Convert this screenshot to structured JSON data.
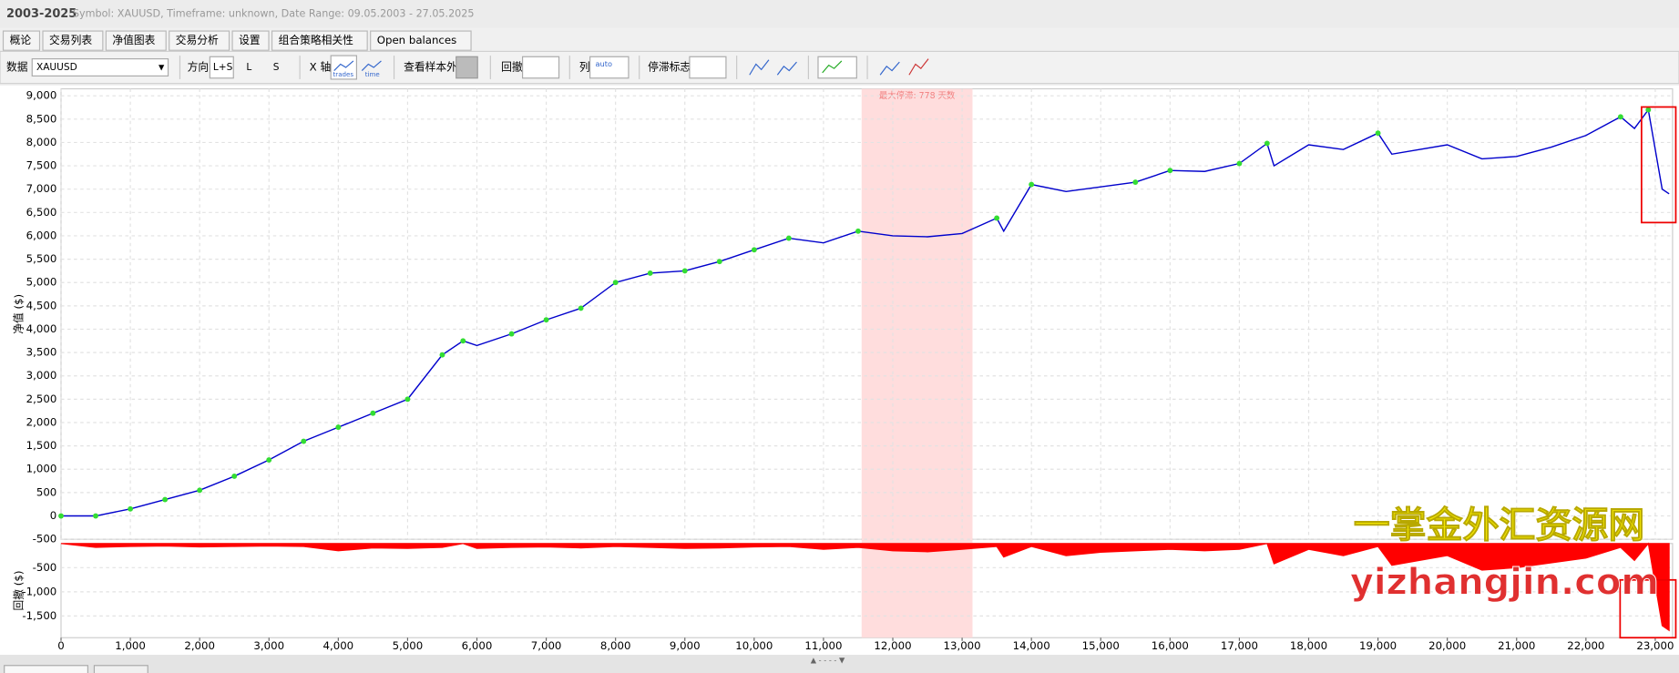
{
  "header": {
    "title": "2003-2025",
    "subtitle": "Symbol: XAUUSD, Timeframe: unknown, Date Range: 09.05.2003 - 27.05.2025"
  },
  "tabs": [
    "概论",
    "交易列表",
    "净值图表",
    "交易分析",
    "设置",
    "组合策略相关性",
    "Open balances"
  ],
  "toolbar": {
    "data_label": "数据",
    "symbol": "XAUUSD",
    "direction_label": "方向",
    "directions": [
      "L+S",
      "L",
      "S"
    ],
    "x_axis_label": "X 轴",
    "x_axis_options": [
      "trades",
      "time"
    ],
    "out_of_sample": "查看样本外",
    "drawdown_label": "回撤",
    "columns_label": "列",
    "columns_option": "auto",
    "stagnation_label": "停滞标志"
  },
  "chart_data": {
    "type": "line",
    "ylabel": "净值 ($)",
    "x": [
      0,
      500,
      1000,
      1500,
      2000,
      2500,
      3000,
      3500,
      4000,
      4500,
      5000,
      5500,
      5800,
      6000,
      6500,
      7000,
      7500,
      8000,
      8500,
      9000,
      9500,
      10000,
      10500,
      11000,
      11500,
      12000,
      12500,
      13000,
      13500,
      13600,
      14000,
      14500,
      15000,
      15500,
      16000,
      16500,
      17000,
      17400,
      17500,
      18000,
      18500,
      19000,
      19200,
      20000,
      20500,
      21000,
      21500,
      22000,
      22500,
      22700,
      22900,
      23100,
      23200
    ],
    "series": [
      {
        "color": "#0000cc",
        "values": [
          0,
          0,
          150,
          350,
          550,
          850,
          1200,
          1600,
          1900,
          2200,
          2500,
          3450,
          3750,
          3650,
          3900,
          4200,
          4450,
          5000,
          5200,
          5250,
          5450,
          5700,
          5950,
          5850,
          6100,
          6000,
          5980,
          6050,
          6380,
          6100,
          7100,
          6950,
          7050,
          7150,
          7400,
          7380,
          7550,
          7980,
          7500,
          7950,
          7850,
          8200,
          7750,
          7950,
          7650,
          7700,
          7900,
          8150,
          8550,
          8300,
          8700,
          7000,
          6900
        ]
      }
    ],
    "highlight_color": "#33dd33",
    "xlim": [
      0,
      23250
    ],
    "xticks": [
      0,
      {
        "value": 1000,
        "label": "1,000"
      },
      {
        "value": 2000,
        "label": "2,000"
      },
      {
        "value": 3000,
        "label": "3,000"
      },
      {
        "value": 4000,
        "label": "4,000"
      },
      {
        "value": 5000,
        "label": "5,000"
      },
      {
        "value": 6000,
        "label": "6,000"
      },
      {
        "value": 7000,
        "label": "7,000"
      },
      {
        "value": 8000,
        "label": "8,000"
      },
      {
        "value": 9000,
        "label": "9,000"
      },
      {
        "value": 10000,
        "label": "10,000"
      },
      {
        "value": 11000,
        "label": "11,000"
      },
      {
        "value": 12000,
        "label": "12,000"
      },
      {
        "value": 13000,
        "label": "13,000"
      },
      {
        "value": 14000,
        "label": "14,000"
      },
      {
        "value": 15000,
        "label": "15,000"
      },
      {
        "value": 16000,
        "label": "16,000"
      },
      {
        "value": 17000,
        "label": "17,000"
      },
      {
        "value": 18000,
        "label": "18,000"
      },
      {
        "value": 19000,
        "label": "19,000"
      },
      {
        "value": 20000,
        "label": "20,000"
      },
      {
        "value": 21000,
        "label": "21,000"
      },
      {
        "value": 22000,
        "label": "22,000"
      },
      {
        "value": 23000,
        "label": "23,000"
      }
    ],
    "ylim": [
      -500,
      9150
    ],
    "yticks": [
      -500,
      0,
      500,
      {
        "value": 1000,
        "label": "1,000"
      },
      {
        "value": 1500,
        "label": "1,500"
      },
      {
        "value": 2000,
        "label": "2,000"
      },
      {
        "value": 2500,
        "label": "2,500"
      },
      {
        "value": 3000,
        "label": "3,000"
      },
      {
        "value": 3500,
        "label": "3,500"
      },
      {
        "value": 4000,
        "label": "4,000"
      },
      {
        "value": 4500,
        "label": "4,500"
      },
      {
        "value": 5000,
        "label": "5,000"
      },
      {
        "value": 5500,
        "label": "5,500"
      },
      {
        "value": 6000,
        "label": "6,000"
      },
      {
        "value": 6500,
        "label": "6,500"
      },
      {
        "value": 7000,
        "label": "7,000"
      },
      {
        "value": 7500,
        "label": "7,500"
      },
      {
        "value": 8000,
        "label": "8,000"
      },
      {
        "value": 8500,
        "label": "8,500"
      },
      {
        "value": 9000,
        "label": "9,000"
      }
    ],
    "grid": true,
    "stagnation": {
      "x": [
        11550,
        13150
      ],
      "label": "最大停滞: 778 天数",
      "color": "#ffdddd"
    },
    "drawdown": {
      "ylabel": "回撤 ($)",
      "color": "#ff0000",
      "values": [
        0,
        -80,
        -60,
        -50,
        -70,
        -60,
        -50,
        -60,
        -150,
        -90,
        -100,
        -80,
        0,
        -100,
        -80,
        -70,
        -90,
        -60,
        -80,
        -100,
        -90,
        -70,
        -60,
        -120,
        -80,
        -150,
        -170,
        -120,
        -60,
        -280,
        -60,
        -250,
        -180,
        -150,
        -120,
        -150,
        -120,
        0,
        -420,
        -120,
        -250,
        -60,
        -450,
        -250,
        -550,
        -500,
        -400,
        -300,
        -80,
        -350,
        0,
        -1700,
        -1800
      ],
      "ylim": [
        -1950,
        0
      ],
      "yticks": [
        -500,
        {
          "value": -1000,
          "label": "-1,000"
        },
        {
          "value": -1500,
          "label": "-1,500"
        }
      ]
    }
  },
  "watermark": [
    "一掌金外汇资源网",
    "yizhangjin.com"
  ]
}
